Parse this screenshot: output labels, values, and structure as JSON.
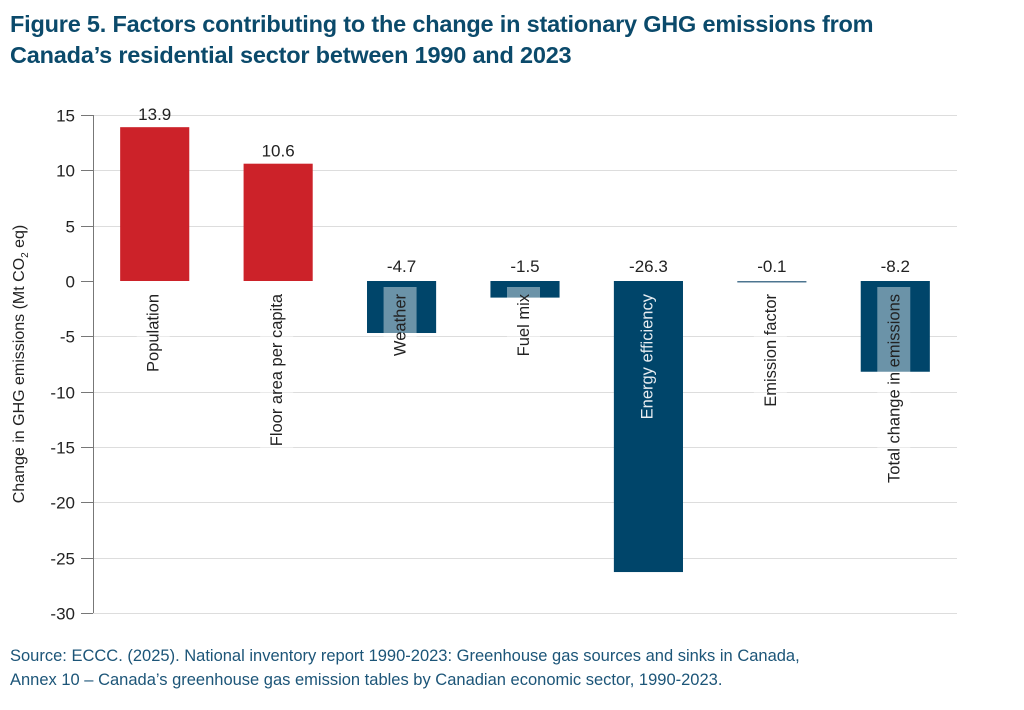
{
  "figure": {
    "title_line1": "Figure 5. Factors contributing to the change in stationary GHG emissions from",
    "title_line2": "Canada’s residential sector between 1990 and 2023",
    "source_line1": "Source: ECCC. (2025). National inventory report 1990-2023: Greenhouse gas sources and sinks in Canada,",
    "source_line2": "Annex 10 – Canada’s greenhouse gas emission tables by Canadian economic sector, 1990-2023."
  },
  "colors": {
    "positive": "#cc2229",
    "negative": "#00456a",
    "title": "#0b4a6b",
    "grid": "#dddddd",
    "axis": "#777777"
  },
  "chart_data": {
    "type": "bar",
    "title": "Factors contributing to the change in stationary GHG emissions from Canada’s residential sector between 1990 and 2023",
    "xlabel": "",
    "ylabel_main": "Change in GHG emissions (Mt CO",
    "ylabel_sub": "2",
    "ylabel_tail": " eq)",
    "ylabel": "Change in GHG emissions (Mt CO2 eq)",
    "ylim": [
      -30,
      15
    ],
    "yticks": [
      15,
      10,
      5,
      0,
      -5,
      -10,
      -15,
      -20,
      -25,
      -30
    ],
    "grid": true,
    "legend": "none",
    "categories": [
      "Population",
      "Floor area per capita",
      "Weather",
      "Fuel mix",
      "Energy efficiency",
      "Emission factor",
      "Total change in emissions"
    ],
    "values": [
      13.9,
      10.6,
      -4.7,
      -1.5,
      -26.3,
      -0.1,
      -8.2
    ],
    "data_labels": [
      "13.9",
      "10.6",
      "-4.7",
      "-1.5",
      "-26.3",
      "-0.1",
      "-8.2"
    ]
  }
}
